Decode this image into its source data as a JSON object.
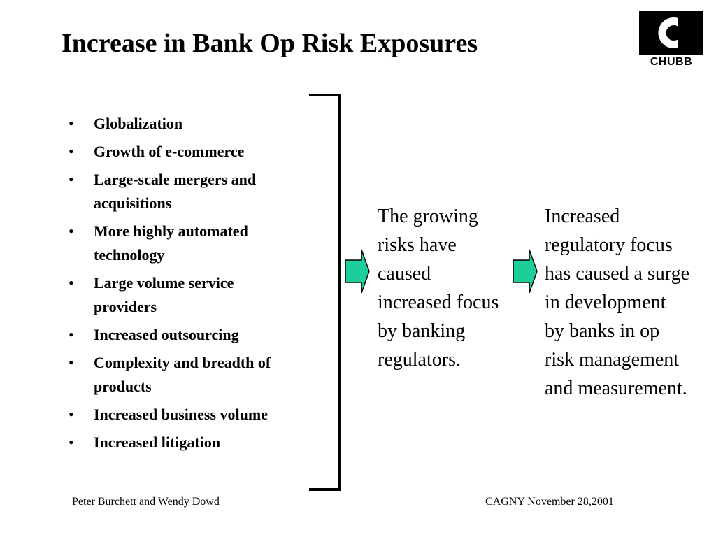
{
  "slide": {
    "title": "Increase in Bank Op Risk Exposures",
    "logo": {
      "text": "CHUBB",
      "icon": "chubb-c-logo-icon"
    },
    "bullets": [
      "Globalization",
      "Growth of e-commerce",
      "Large-scale mergers and\nacquisitions",
      "More highly automated\ntechnology",
      "Large volume service\nproviders",
      "Increased outsourcing",
      "Complexity and breadth of\nproducts",
      "Increased business volume",
      "Increased litigation"
    ],
    "flow": {
      "step1": "The growing\nrisks have\ncaused\nincreased focus\nby banking\nregulators.",
      "step2": "Increased\nregulatory focus\nhas caused a surge\nin development\nby banks in op\nrisk management\nand measurement."
    },
    "colors": {
      "arrow_fill": "#1ccf9a",
      "arrow_stroke": "#000000",
      "text": "#000000",
      "background": "#ffffff"
    },
    "footer": {
      "left": "Peter Burchett and Wendy Dowd",
      "right": "CAGNY November 28,2001"
    }
  }
}
